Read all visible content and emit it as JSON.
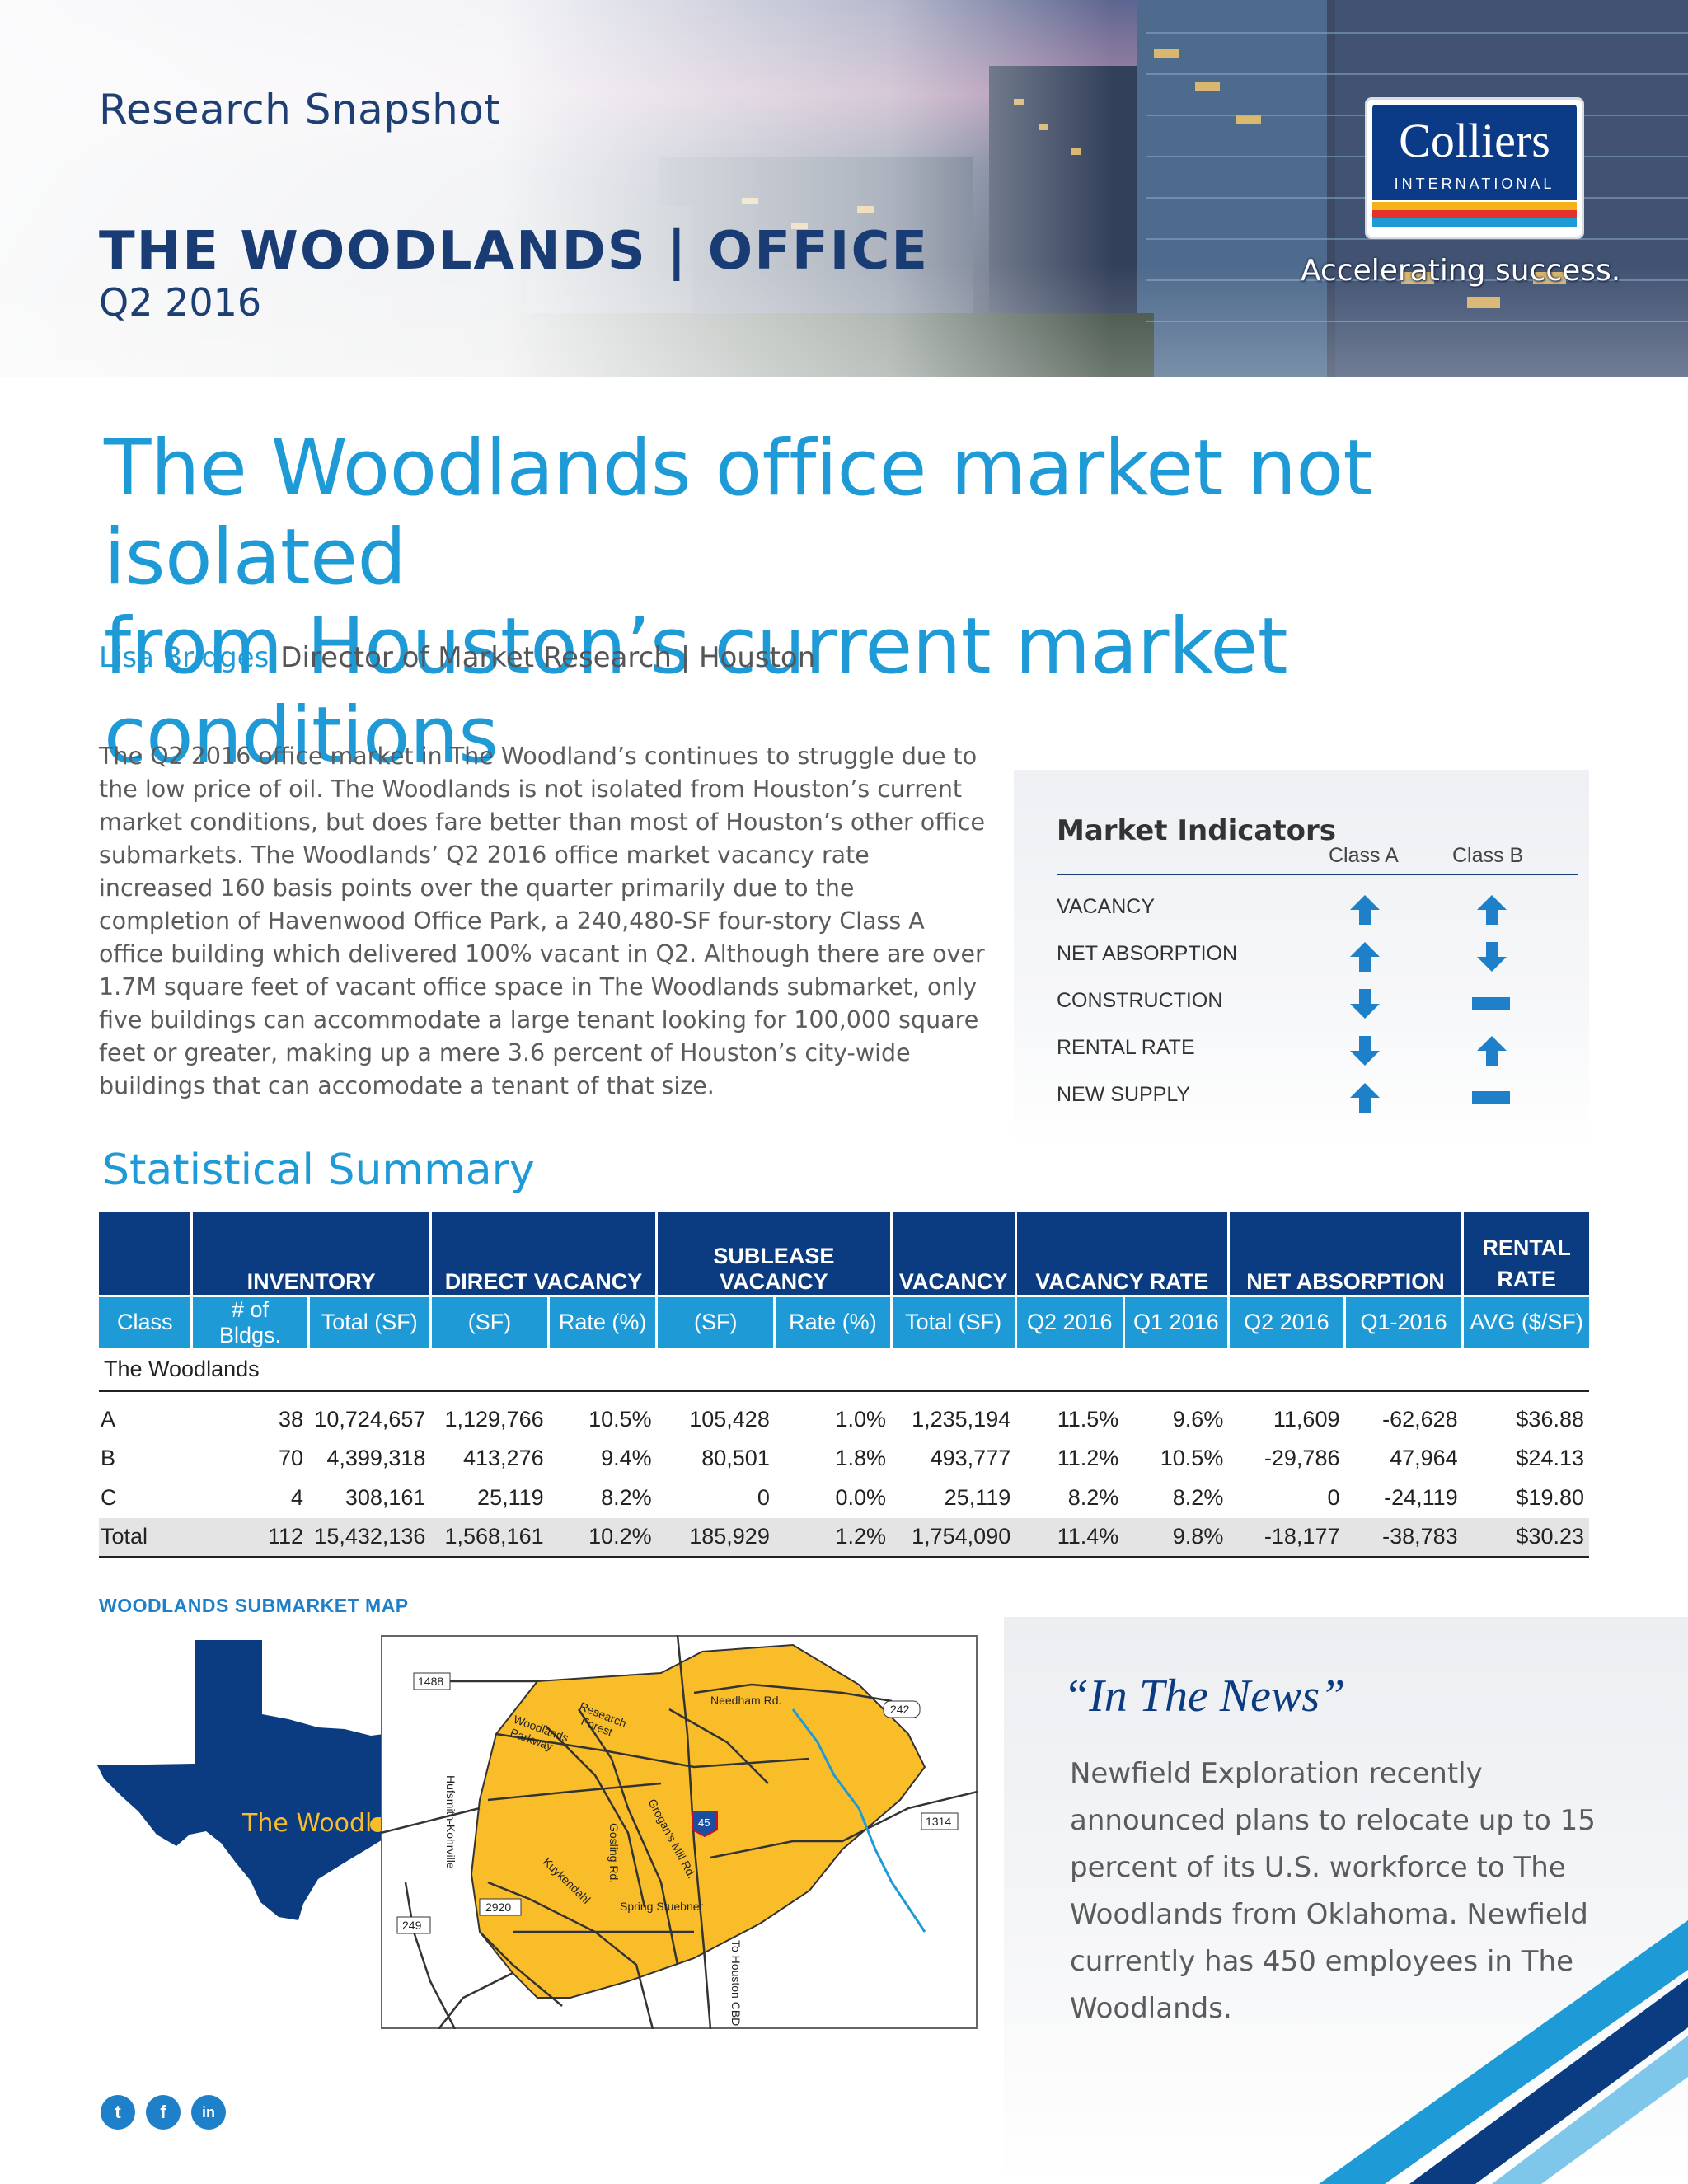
{
  "header": {
    "kicker": "Research Snapshot",
    "market_title": "THE WOODLANDS  |  OFFICE",
    "quarter": "Q2 2016",
    "logo_text": "Colliers",
    "logo_sub": "INTERNATIONAL",
    "tagline": "Accelerating success."
  },
  "headline": {
    "line1": "The Woodlands office market not isolated",
    "line2": "from Houston’s current market conditions"
  },
  "byline": {
    "name": "Lisa Bridges",
    "role": "Director of Market Research | Houston"
  },
  "intro": "The Q2 2016 office market in The Woodland’s continues to struggle due to the low price of oil. The Woodlands is not isolated from Houston’s current market conditions, but does fare better than most of Houston’s other office submarkets. The Woodlands’ Q2 2016 office market vacancy rate increased 160 basis points over the quarter primarily due to the completion of Havenwood Office Park, a 240,480-SF four-story Class A office building which delivered 100% vacant in Q2.  Although there are over 1.7M square feet of vacant office space in The Woodlands submarket, only five buildings can accommodate a large tenant looking for 100,000 square feet or greater, making up a mere 3.6 percent of Houston’s city-wide buildings that can accomodate a tenant of that size.",
  "market_indicators": {
    "title": "Market Indicators",
    "col_a": "Class A",
    "col_b": "Class B",
    "rows": [
      {
        "label": "VACANCY",
        "class_a": "up",
        "class_b": "up"
      },
      {
        "label": "NET ABSORPTION",
        "class_a": "up",
        "class_b": "down"
      },
      {
        "label": "CONSTRUCTION",
        "class_a": "down",
        "class_b": "flat"
      },
      {
        "label": "RENTAL RATE",
        "class_a": "down",
        "class_b": "up"
      },
      {
        "label": "NEW SUPPLY",
        "class_a": "up",
        "class_b": "flat"
      }
    ]
  },
  "statistical_summary": {
    "title": "Statistical Summary",
    "group_headers": [
      "INVENTORY",
      "DIRECT VACANCY",
      "SUBLEASE VACANCY",
      "VACANCY",
      "VACANCY RATE",
      "NET ABSORPTION",
      "RENTAL RATE"
    ],
    "sub_headers": [
      "Class",
      "# of Bldgs.",
      "Total (SF)",
      "(SF)",
      "Rate (%)",
      "(SF)",
      "Rate (%)",
      "Total (SF)",
      "Q2 2016",
      "Q1 2016",
      "Q2 2016",
      "Q1-2016",
      "AVG ($/SF)"
    ],
    "group_label": "The Woodlands",
    "rows": [
      [
        "A",
        "38",
        "10,724,657",
        "1,129,766",
        "10.5%",
        "105,428",
        "1.0%",
        "1,235,194",
        "11.5%",
        "9.6%",
        "11,609",
        "-62,628",
        "$36.88"
      ],
      [
        "B",
        "70",
        "4,399,318",
        "413,276",
        "9.4%",
        "80,501",
        "1.8%",
        "493,777",
        "11.2%",
        "10.5%",
        "-29,786",
        "47,964",
        "$24.13"
      ],
      [
        "C",
        "4",
        "308,161",
        "25,119",
        "8.2%",
        "0",
        "0.0%",
        "25,119",
        "8.2%",
        "8.2%",
        "0",
        "-24,119",
        "$19.80"
      ],
      [
        "Total",
        "112",
        "15,432,136",
        "1,568,161",
        "10.2%",
        "185,929",
        "1.2%",
        "1,754,090",
        "11.4%",
        "9.8%",
        "-18,177",
        "-38,783",
        "$30.23"
      ]
    ]
  },
  "map": {
    "title": "WOODLANDS SUBMARKET MAP",
    "texas_label": "The Woodlands",
    "labels": {
      "r1488": "1488",
      "r242": "242",
      "r1314": "1314",
      "r2920": "2920",
      "r249": "249",
      "r45": "45",
      "research": "Research",
      "forest": "Forest",
      "woodlands": "Woodlands",
      "parkway": "Parkway",
      "needham": "Needham Rd.",
      "hufsmith": "Hufsmith-Kohrville",
      "gosling": "Gosling Rd.",
      "grogans": "Grogan's Mill Rd.",
      "kuykendahl": "Kuykendahl",
      "spring": "Spring Stuebner",
      "houston": "To Houston CBD"
    }
  },
  "news": {
    "title": "“In The News”",
    "body": "Newfield Exploration recently announced plans to relocate up to 15 percent of its U.S. workforce to The Woodlands from Oklahoma.  Newfield currently has 450 employees in The Woodlands."
  },
  "social": {
    "twitter": "t",
    "facebook": "f",
    "linkedin": "in"
  },
  "colors": {
    "brand_navy": "#0b3b80",
    "accent_blue": "#1e9bd7",
    "map_fill": "#f9bd2a"
  }
}
